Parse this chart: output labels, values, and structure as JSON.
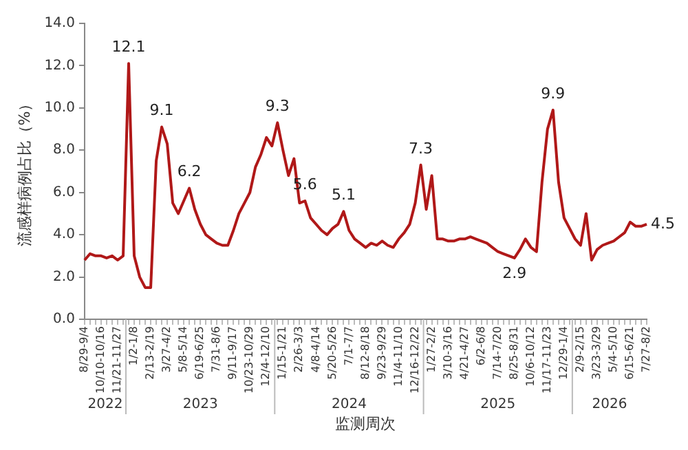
{
  "chart_data": {
    "type": "line",
    "xlabel": "监测周次",
    "ylabel": "流感样病例占比（%）",
    "categories": [
      "8/29-9/4",
      null,
      null,
      "10/10-10/16",
      null,
      null,
      "11/21-11/27",
      null,
      null,
      "1/2-1/8",
      null,
      null,
      "2/13-2/19",
      null,
      null,
      "3/27-4/2",
      null,
      null,
      "5/8-5/14",
      null,
      null,
      "6/19-6/25",
      null,
      null,
      "7/31-8/6",
      null,
      null,
      "9/11-9/17",
      null,
      null,
      "10/23-10/29",
      null,
      null,
      "12/4-12/10",
      null,
      null,
      "1/15-1/21",
      null,
      null,
      "2/26-3/3",
      null,
      null,
      "4/8-4/14",
      null,
      null,
      "5/20-5/26",
      null,
      null,
      "7/1-7/7",
      null,
      null,
      "8/12-8/18",
      null,
      null,
      "9/23-9/29",
      null,
      null,
      "11/4-11/10",
      null,
      null,
      "12/16-12/22",
      null,
      null,
      "1/27-2/2",
      null,
      null,
      "3/10-3/16",
      null,
      null,
      "4/21-4/27",
      null,
      null,
      "6/2-6/8",
      null,
      null,
      "7/14-7/20",
      null,
      null,
      "8/25-8/31",
      null,
      null,
      "10/6-10/12",
      null,
      null,
      "11/17-11/23",
      null,
      null,
      "12/29-1/4",
      null,
      null,
      "2/9-2/15",
      null,
      null,
      "3/23-3/29",
      null,
      null,
      "5/4-5/10",
      null,
      null,
      "6/15-6/21",
      null,
      null,
      "7/27-8/2"
    ],
    "series": [
      {
        "color": "#b01818",
        "values": [
          2.8,
          3.1,
          3.0,
          3.0,
          2.9,
          3.0,
          2.8,
          3.0,
          12.1,
          3.0,
          2.0,
          1.5,
          1.5,
          7.5,
          9.1,
          8.3,
          5.5,
          5.0,
          5.6,
          6.2,
          5.2,
          4.5,
          4.0,
          3.8,
          3.6,
          3.5,
          3.5,
          4.2,
          5.0,
          5.5,
          6.0,
          7.2,
          7.8,
          8.6,
          8.2,
          9.3,
          8.0,
          6.8,
          7.6,
          5.5,
          5.6,
          4.8,
          4.5,
          4.2,
          4.0,
          4.3,
          4.5,
          5.1,
          4.2,
          3.8,
          3.6,
          3.4,
          3.6,
          3.5,
          3.7,
          3.5,
          3.4,
          3.8,
          4.1,
          4.5,
          5.5,
          7.3,
          5.2,
          6.8,
          3.8,
          3.8,
          3.7,
          3.7,
          3.8,
          3.8,
          3.9,
          3.8,
          3.7,
          3.6,
          3.4,
          3.2,
          3.1,
          3.0,
          2.9,
          3.3,
          3.8,
          3.4,
          3.2,
          6.5,
          9.0,
          9.9,
          6.5,
          4.8,
          4.3,
          3.8,
          3.5,
          5.0,
          2.8,
          3.3,
          3.5,
          3.6,
          3.7,
          3.9,
          4.1,
          4.6,
          4.4,
          4.4,
          4.5
        ],
        "value_labels": [
          null,
          null,
          null,
          null,
          null,
          null,
          null,
          null,
          "12.1",
          null,
          null,
          null,
          null,
          null,
          "9.1",
          null,
          null,
          null,
          null,
          "6.2",
          null,
          null,
          null,
          null,
          null,
          null,
          null,
          null,
          null,
          null,
          null,
          null,
          null,
          null,
          null,
          "9.3",
          null,
          null,
          null,
          null,
          "5.6",
          null,
          null,
          null,
          null,
          null,
          null,
          "5.1",
          null,
          null,
          null,
          null,
          null,
          null,
          null,
          null,
          null,
          null,
          null,
          null,
          null,
          "7.3",
          null,
          null,
          null,
          null,
          null,
          null,
          null,
          null,
          null,
          null,
          null,
          null,
          null,
          null,
          null,
          null,
          "2.9",
          null,
          null,
          null,
          null,
          null,
          null,
          "9.9",
          null,
          null,
          null,
          null,
          null,
          null,
          null,
          null,
          null,
          null,
          null,
          null,
          null,
          null,
          null,
          null,
          "4.5"
        ]
      }
    ],
    "ylim": [
      0,
      14
    ],
    "yticks": [
      {
        "value": 0,
        "label": "0.0"
      },
      {
        "value": 2,
        "label": "2.0"
      },
      {
        "value": 4,
        "label": "4.0"
      },
      {
        "value": 6,
        "label": "6.0"
      },
      {
        "value": 8,
        "label": "8.0"
      },
      {
        "value": 10,
        "label": "10.0"
      },
      {
        "value": 12,
        "label": "12.0"
      },
      {
        "value": 14,
        "label": "14.0"
      }
    ],
    "annotations": [
      "2022",
      "2023",
      "2024",
      "2025",
      "2026"
    ],
    "grid": false,
    "legend": false,
    "marker": "none",
    "line_style": "solid"
  }
}
